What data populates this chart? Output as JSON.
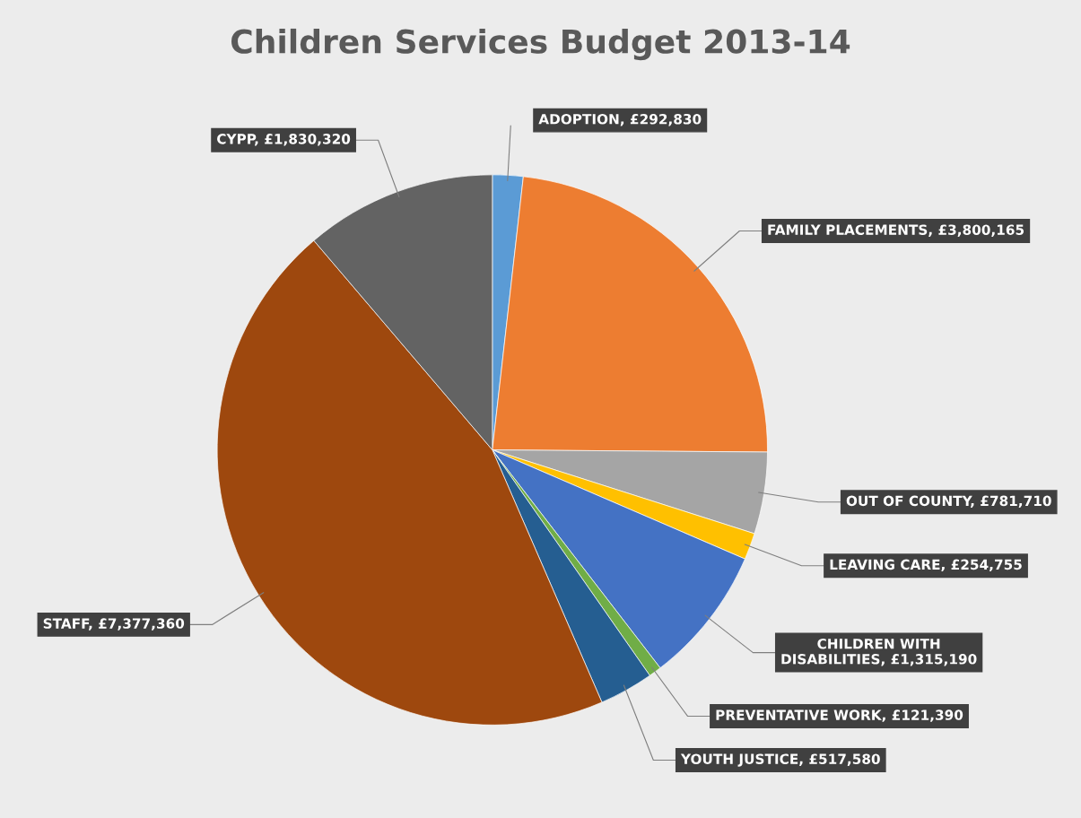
{
  "chart_data": {
    "type": "pie",
    "title": "Children Services Budget 2013-14",
    "categories": [
      "ADOPTION",
      "FAMILY PLACEMENTS",
      "OUT OF COUNTY",
      "LEAVING CARE",
      "CHILDREN WITH DISABILITIES",
      "PREVENTATIVE WORK",
      "YOUTH JUSTICE",
      "STAFF",
      "CYPP"
    ],
    "values": [
      292830,
      3800165,
      781710,
      254755,
      1315190,
      121390,
      517580,
      7377360,
      1830320
    ],
    "value_labels": [
      "£292,830",
      "£3,800,165",
      "£781,710",
      "£254,755",
      "£1,315,190",
      "£121,390",
      "£517,580",
      "£7,377,360",
      "£1,830,320"
    ],
    "colors": [
      "#5b9bd5",
      "#ed7d31",
      "#a5a5a5",
      "#ffc000",
      "#4472c4",
      "#70ad47",
      "#255e91",
      "#9e480e",
      "#636363"
    ],
    "legend": false
  }
}
